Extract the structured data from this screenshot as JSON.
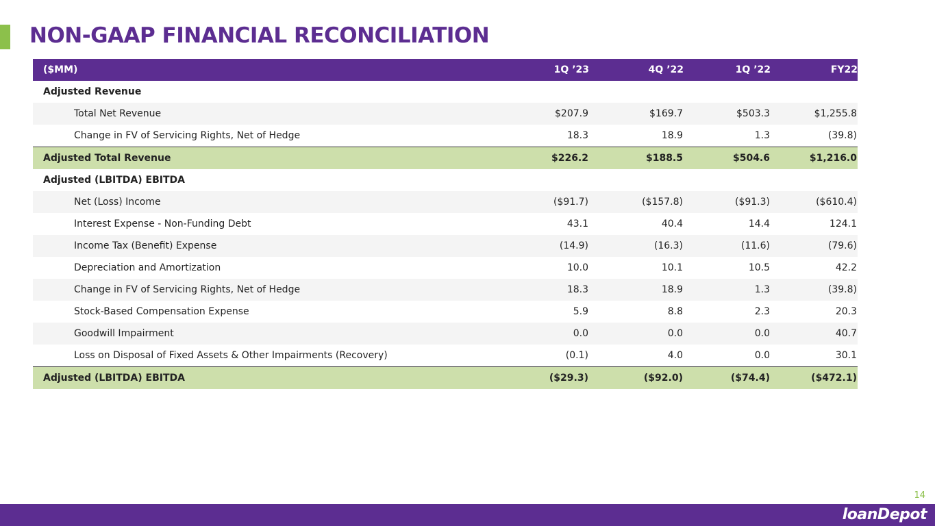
{
  "header": {
    "title": "NON-GAAP FINANCIAL RECONCILIATION"
  },
  "table": {
    "columns": [
      "($MM)",
      "1Q ’23",
      "4Q ’22",
      "1Q ’22",
      "FY22"
    ],
    "sections": [
      {
        "heading": "Adjusted Revenue",
        "rows": [
          [
            "Total Net Revenue",
            "$207.9",
            "$169.7",
            "$503.3",
            "$1,255.8"
          ],
          [
            "Change in FV of Servicing Rights, Net of Hedge",
            "18.3",
            "18.9",
            "1.3",
            "(39.8)"
          ]
        ],
        "total": [
          "Adjusted Total Revenue",
          "$226.2",
          "$188.5",
          "$504.6",
          "$1,216.0"
        ]
      },
      {
        "heading": "Adjusted (LBITDA) EBITDA",
        "rows": [
          [
            "Net (Loss) Income",
            "($91.7)",
            "($157.8)",
            "($91.3)",
            "($610.4)"
          ],
          [
            "Interest Expense - Non-Funding Debt",
            "43.1",
            "40.4",
            "14.4",
            "124.1"
          ],
          [
            "Income Tax (Benefit) Expense",
            "(14.9)",
            "(16.3)",
            "(11.6)",
            "(79.6)"
          ],
          [
            "Depreciation and Amortization",
            "10.0",
            "10.1",
            "10.5",
            "42.2"
          ],
          [
            "Change in FV of Servicing Rights, Net of Hedge",
            "18.3",
            "18.9",
            "1.3",
            "(39.8)"
          ],
          [
            "Stock-Based Compensation Expense",
            "5.9",
            "8.8",
            "2.3",
            "20.3"
          ],
          [
            "Goodwill Impairment",
            "0.0",
            "0.0",
            "0.0",
            "40.7"
          ],
          [
            "Loss on Disposal of Fixed Assets & Other Impairments (Recovery)",
            "(0.1)",
            "4.0",
            "0.0",
            "30.1"
          ]
        ],
        "total": [
          "Adjusted (LBITDA) EBITDA",
          "($29.3)",
          "($92.0)",
          "($74.4)",
          "($472.1)"
        ]
      }
    ]
  },
  "footer": {
    "page_number": "14",
    "logo": "loanDepot"
  }
}
